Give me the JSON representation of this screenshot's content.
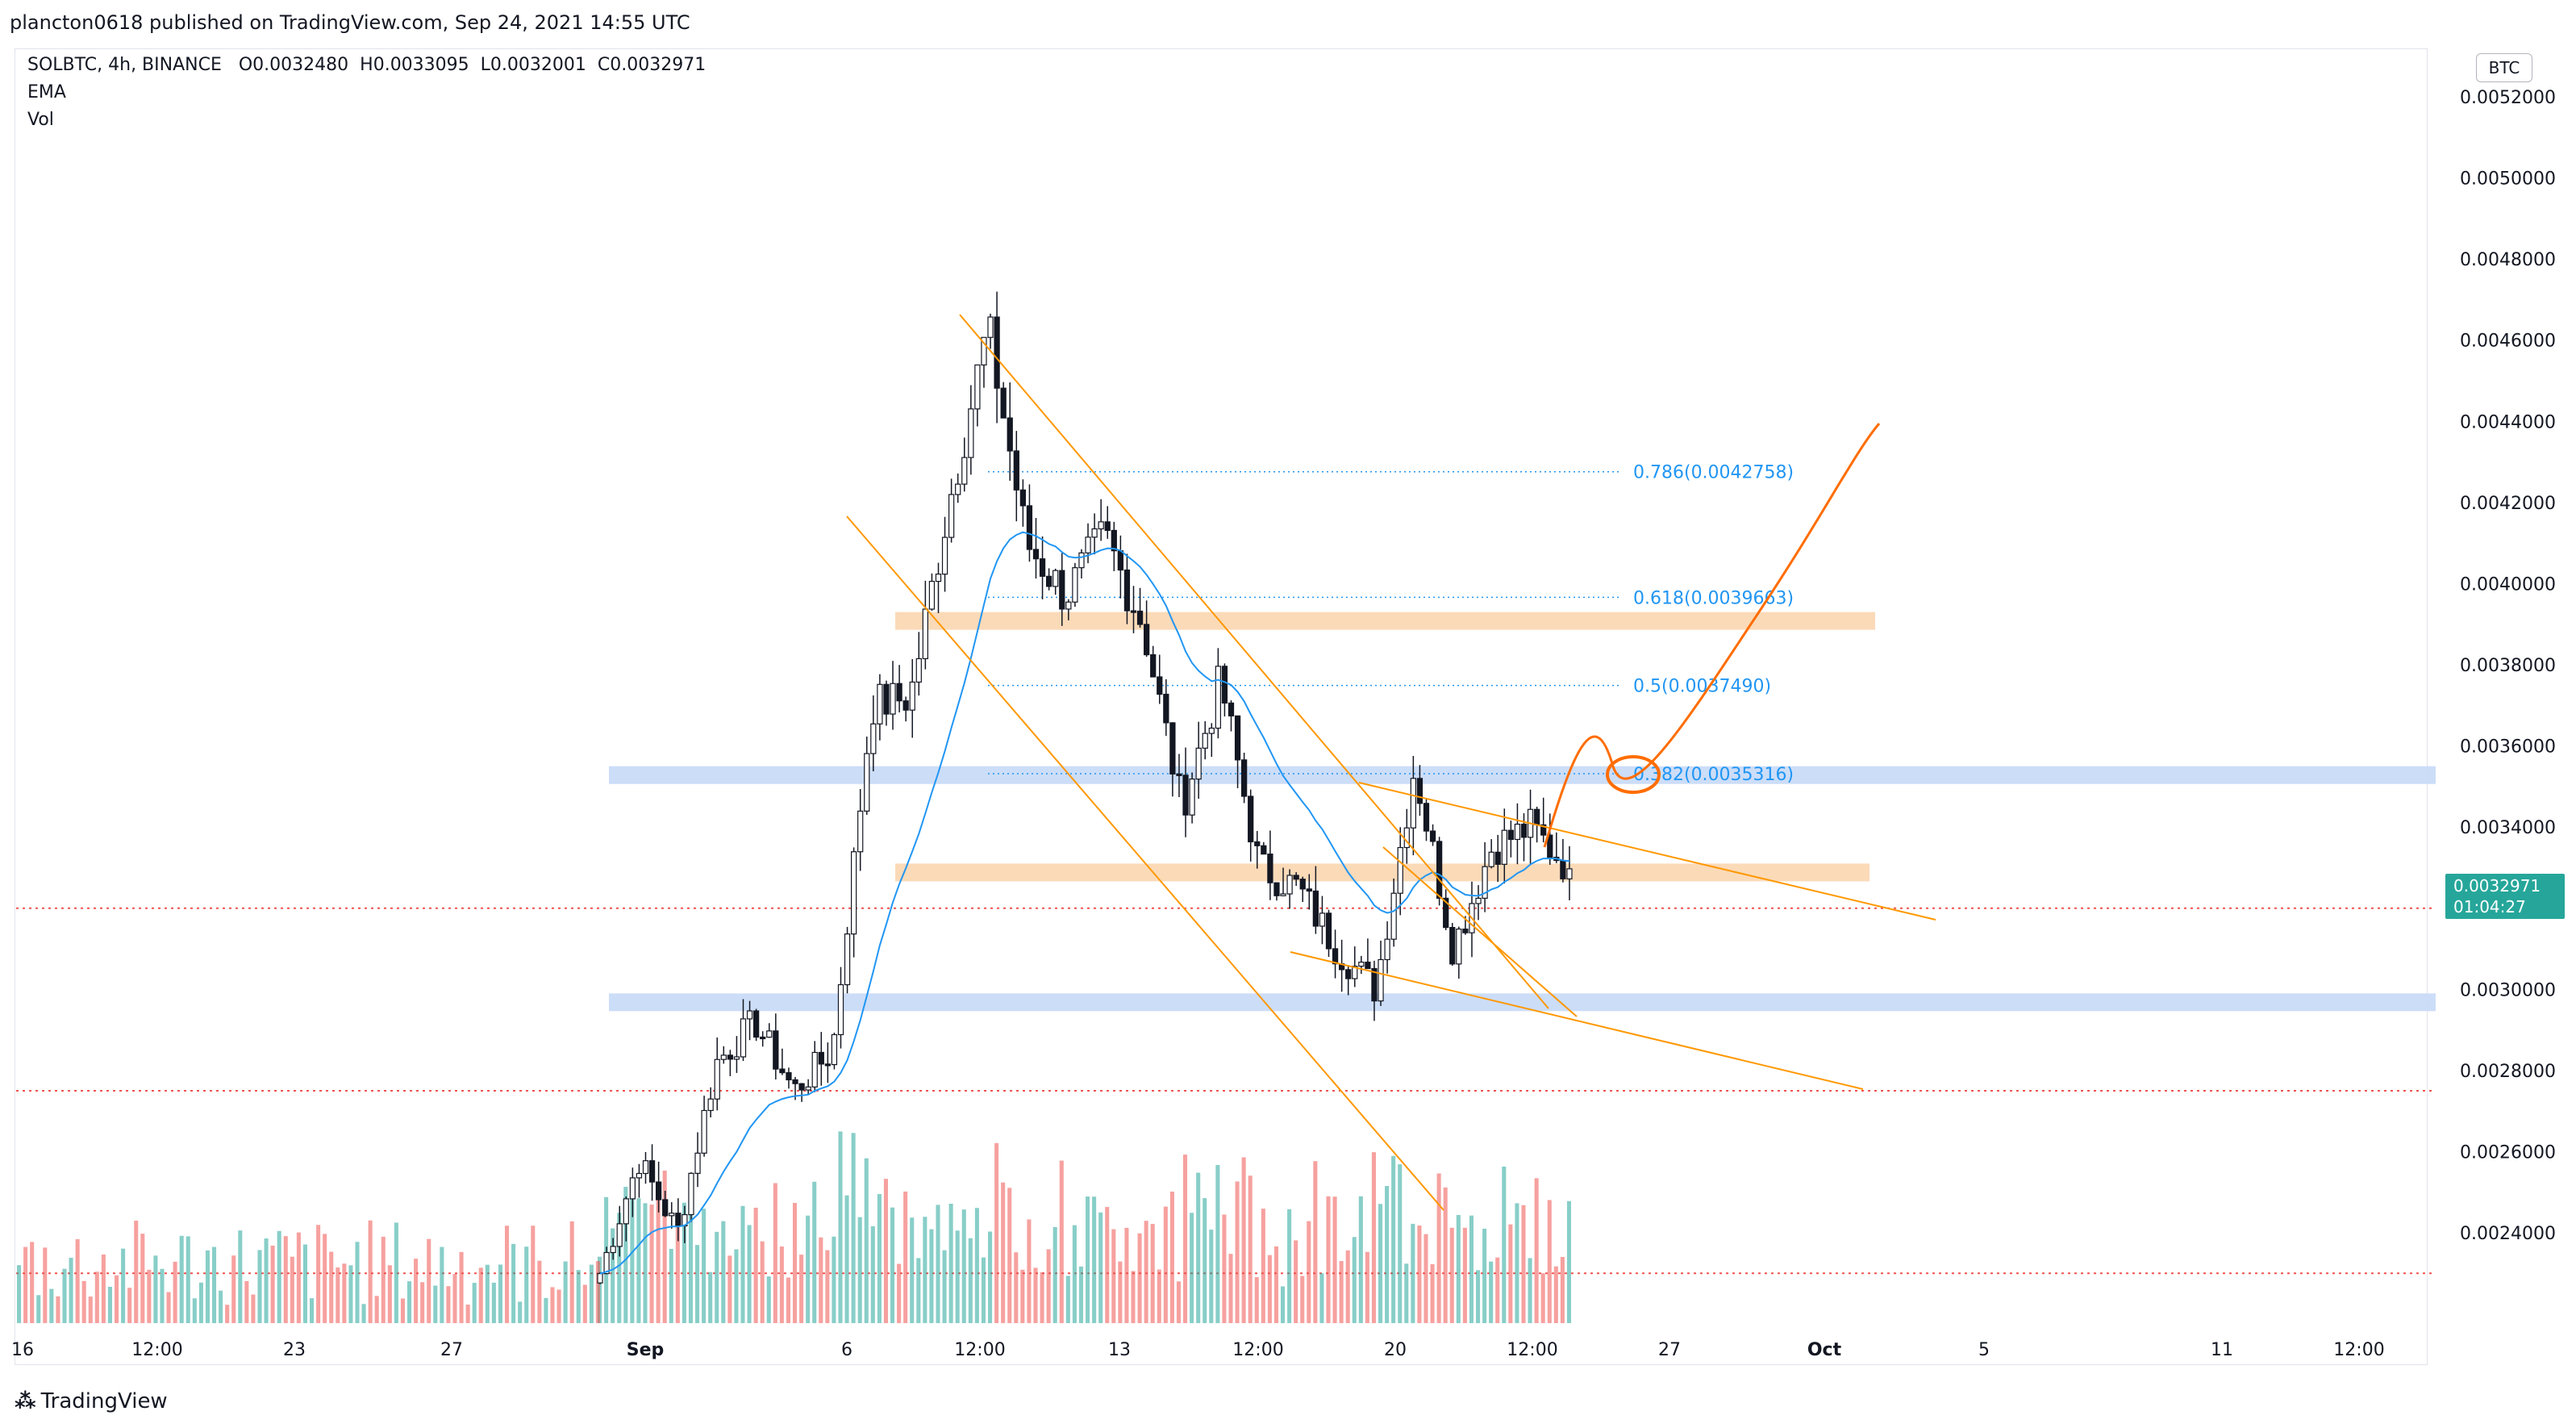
{
  "header": {
    "publisher": "plancton0618 published on TradingView.com, Sep 24, 2021 14:55 UTC"
  },
  "legend": {
    "symbol": "SOLBTC, 4h, BINANCE",
    "open": "O0.0032480",
    "high": "H0.0033095",
    "low": "L0.0032001",
    "close": "C0.0032971",
    "ema": "EMA",
    "vol": "Vol"
  },
  "price_axis": {
    "currency_button": "BTC",
    "last_price": "0.0032971",
    "countdown": "01:04:27"
  },
  "footer": {
    "brand": "TradingView"
  },
  "colors": {
    "up": "#26a69a",
    "down": "#ef5350",
    "ema": "#2196f3",
    "trendline": "#ff9800",
    "fib": "#2196f3",
    "orange_zone": "#fbd6b0",
    "blue_zone": "#c6d9f7",
    "support_dotted": "#ef5350"
  },
  "chart_data": {
    "type": "candlestick",
    "symbol": "SOLBTC",
    "interval": "4h",
    "exchange": "BINANCE",
    "y_axis_ticks": [
      "0.0024000",
      "0.0026000",
      "0.0028000",
      "0.0030000",
      "0.0032000",
      "0.0034000",
      "0.0036000",
      "0.0038000",
      "0.0040000",
      "0.0042000",
      "0.0044000",
      "0.0046000",
      "0.0048000",
      "0.0050000",
      "0.0052000"
    ],
    "ylim": [
      0.00226,
      0.00535
    ],
    "x_axis_ticks": [
      "16",
      "12:00",
      "23",
      "27",
      "Sep",
      "6",
      "12:00",
      "13",
      "12:00",
      "20",
      "12:00",
      "27",
      "Oct",
      "5",
      "11",
      "12:00"
    ],
    "series": [
      {
        "name": "SOLBTC",
        "close_path": [
          [
            "Aug 31",
            0.0023
          ],
          [
            "Sep 1",
            0.00258
          ],
          [
            "Sep 2",
            0.0024
          ],
          [
            "Sep 3",
            0.00282
          ],
          [
            "Sep 4",
            0.00292
          ],
          [
            "Sep 5",
            0.00275
          ],
          [
            "Sep 6",
            0.00285
          ],
          [
            "Sep 7",
            0.0037
          ],
          [
            "Sep 8",
            0.00372
          ],
          [
            "Sep 9",
            0.0042
          ],
          [
            "Sep 9 12:00",
            0.00463
          ],
          [
            "Sep 10",
            0.0041
          ],
          [
            "Sep 11",
            0.00397
          ],
          [
            "Sep 12",
            0.00412
          ],
          [
            "Sep 13",
            0.0039
          ],
          [
            "Sep 14",
            0.00345
          ],
          [
            "Sep 15",
            0.00376
          ],
          [
            "Sep 16",
            0.0033
          ],
          [
            "Sep 17",
            0.00325
          ],
          [
            "Sep 18",
            0.0031
          ],
          [
            "Sep 19",
            0.003
          ],
          [
            "Sep 20",
            0.00355
          ],
          [
            "Sep 21",
            0.0031
          ],
          [
            "Sep 22",
            0.00335
          ],
          [
            "Sep 23",
            0.0034
          ],
          [
            "Sep 24",
            0.0032971
          ]
        ]
      },
      {
        "name": "EMA"
      },
      {
        "name": "Vol"
      }
    ],
    "horizontal_zones": [
      {
        "color": "blue",
        "from": 0.00351,
        "to": 0.00355
      },
      {
        "color": "orange",
        "from": 0.00328,
        "to": 0.00331
      },
      {
        "color": "orange",
        "from": 0.0039,
        "to": 0.00393
      },
      {
        "color": "blue",
        "from": 0.00295,
        "to": 0.00299
      }
    ],
    "support_lines_dotted": [
      0.0032,
      0.00275,
      0.0023
    ],
    "fib_levels": [
      {
        "label": "0.786(0.0042758)",
        "value": 0.0042758
      },
      {
        "label": "0.618(0.0039663)",
        "value": 0.0039663
      },
      {
        "label": "0.5(0.0037490)",
        "value": 0.003749
      },
      {
        "label": "0.382(0.0035316)",
        "value": 0.0035316
      }
    ],
    "grid": false,
    "legend_position": "top-left"
  }
}
